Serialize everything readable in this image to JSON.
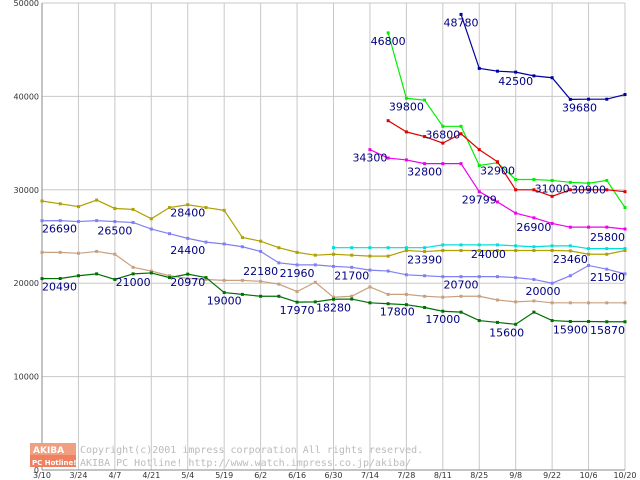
{
  "chart_data": {
    "type": "line",
    "title": "",
    "xlabel": "",
    "ylabel": "",
    "ylim": [
      0,
      50000
    ],
    "yticks": [
      0,
      10000,
      20000,
      30000,
      40000,
      50000
    ],
    "ytick_labels": [
      "0",
      "10000",
      "20000",
      "30000",
      "40000",
      "50000"
    ],
    "xlim": [
      0,
      32
    ],
    "xticks": [
      0,
      2,
      4,
      6,
      8,
      10,
      12,
      14,
      16,
      18,
      20,
      22,
      24,
      26,
      28,
      30,
      32
    ],
    "xtick_labels": [
      "3/10",
      "3/24",
      "4/7",
      "4/21",
      "5/4",
      "5/19",
      "6/2",
      "6/16",
      "6/30",
      "7/14",
      "7/28",
      "8/11",
      "8/25",
      "9/8",
      "9/22",
      "10/6",
      "10/20"
    ],
    "grid": true,
    "series": [
      {
        "name": "navy",
        "color": "#0000a0",
        "x": [
          23,
          24,
          25,
          26,
          27,
          28,
          29,
          30,
          31,
          32
        ],
        "values": [
          48780,
          43000,
          42700,
          42600,
          42200,
          42000,
          39680,
          39700,
          39700,
          40200
        ]
      },
      {
        "name": "bright-green",
        "color": "#00ee00",
        "x": [
          19,
          20,
          21,
          22,
          23,
          24,
          25,
          26,
          27,
          28,
          29,
          30,
          31,
          32
        ],
        "values": [
          46800,
          39800,
          39600,
          36800,
          36800,
          32600,
          32900,
          31100,
          31100,
          31000,
          30800,
          30700,
          31000,
          28100
        ]
      },
      {
        "name": "red",
        "color": "#e00000",
        "x": [
          19,
          20,
          21,
          22,
          23,
          24,
          25,
          26,
          27,
          28,
          29,
          30,
          31,
          32
        ],
        "values": [
          37400,
          36200,
          35700,
          35000,
          36000,
          34300,
          33000,
          30000,
          30000,
          29300,
          30000,
          30000,
          30000,
          29800
        ]
      },
      {
        "name": "magenta",
        "color": "#ee00ee",
        "x": [
          18,
          19,
          20,
          21,
          22,
          23,
          24,
          25,
          26,
          27,
          28,
          29,
          30,
          31,
          32
        ],
        "values": [
          34300,
          33400,
          33200,
          32800,
          32800,
          32800,
          29799,
          28700,
          27500,
          27000,
          26400,
          26000,
          26000,
          26000,
          25800
        ]
      },
      {
        "name": "cyan",
        "color": "#00dddd",
        "x": [
          16,
          17,
          18,
          19,
          20,
          21,
          22,
          23,
          24,
          25,
          26,
          27,
          28,
          29,
          30,
          31,
          32
        ],
        "values": [
          23800,
          23800,
          23800,
          23800,
          23800,
          23800,
          24100,
          24100,
          24100,
          24100,
          24000,
          23900,
          24000,
          24000,
          23700,
          23700,
          23700
        ]
      },
      {
        "name": "olive",
        "color": "#b0a000",
        "x": [
          0,
          1,
          2,
          3,
          4,
          5,
          6,
          7,
          8,
          9,
          10,
          11,
          12,
          13,
          14,
          15,
          16,
          17,
          18,
          19,
          20,
          21,
          22,
          23,
          24,
          25,
          26,
          27,
          28,
          29,
          30,
          31,
          32
        ],
        "values": [
          28800,
          28500,
          28200,
          28900,
          28000,
          27900,
          26900,
          28100,
          28400,
          28100,
          27800,
          24900,
          24500,
          23800,
          23300,
          23000,
          23100,
          23000,
          22900,
          22900,
          23500,
          23390,
          23500,
          23500,
          23500,
          23500,
          23500,
          23500,
          23500,
          23460,
          23100,
          23100,
          23500
        ]
      },
      {
        "name": "periwinkle",
        "color": "#8080f0",
        "x": [
          0,
          1,
          2,
          3,
          4,
          5,
          6,
          7,
          8,
          9,
          10,
          11,
          12,
          13,
          14,
          15,
          16,
          17,
          18,
          19,
          20,
          21,
          22,
          23,
          24,
          25,
          26,
          27,
          28,
          29,
          30,
          31,
          32
        ],
        "values": [
          26690,
          26700,
          26600,
          26700,
          26600,
          26500,
          25800,
          25300,
          24800,
          24400,
          24200,
          23900,
          23400,
          22180,
          21960,
          21960,
          21800,
          21700,
          21400,
          21300,
          20900,
          20800,
          20700,
          20700,
          20700,
          20700,
          20600,
          20400,
          20000,
          20800,
          21900,
          21500,
          21000
        ]
      },
      {
        "name": "tan",
        "color": "#c8a080",
        "x": [
          0,
          1,
          2,
          3,
          4,
          5,
          6,
          7,
          8,
          9,
          10,
          11,
          12,
          13,
          14,
          15,
          16,
          17,
          18,
          19,
          20,
          21,
          22,
          23,
          24,
          25,
          26,
          27,
          28,
          29,
          30,
          31,
          32
        ],
        "values": [
          23300,
          23300,
          23200,
          23400,
          23100,
          21700,
          21300,
          20800,
          20500,
          20400,
          20300,
          20300,
          20200,
          19900,
          19100,
          20100,
          18500,
          18600,
          19600,
          18800,
          18800,
          18600,
          18500,
          18600,
          18600,
          18200,
          18000,
          18100,
          17900,
          17900,
          17900,
          17900,
          17900
        ]
      },
      {
        "name": "dark-green",
        "color": "#007000",
        "x": [
          0,
          1,
          2,
          3,
          4,
          5,
          6,
          7,
          8,
          9,
          10,
          11,
          12,
          13,
          14,
          15,
          16,
          17,
          18,
          19,
          20,
          21,
          22,
          23,
          24,
          25,
          26,
          27,
          28,
          29,
          30,
          31,
          32
        ],
        "values": [
          20490,
          20500,
          20800,
          21000,
          20400,
          21000,
          21100,
          20600,
          20970,
          20600,
          19000,
          18800,
          18600,
          18600,
          17970,
          18000,
          18280,
          18300,
          17900,
          17800,
          17700,
          17400,
          17000,
          16900,
          16000,
          15800,
          15600,
          16900,
          16000,
          15900,
          15900,
          15870,
          15870
        ]
      }
    ],
    "annotations": [
      {
        "text": "48780",
        "x": 23,
        "y": 48780
      },
      {
        "text": "46800",
        "x": 19,
        "y": 46800
      },
      {
        "text": "42500",
        "x": 26,
        "y": 42500
      },
      {
        "text": "39800",
        "x": 20,
        "y": 39800
      },
      {
        "text": "39680",
        "x": 29.5,
        "y": 39680
      },
      {
        "text": "36800",
        "x": 22,
        "y": 36800
      },
      {
        "text": "34300",
        "x": 18,
        "y": 34300
      },
      {
        "text": "32800",
        "x": 21,
        "y": 32800
      },
      {
        "text": "32900",
        "x": 25,
        "y": 32900
      },
      {
        "text": "31000",
        "x": 28,
        "y": 31000
      },
      {
        "text": "30900",
        "x": 30,
        "y": 30900
      },
      {
        "text": "29799",
        "x": 24,
        "y": 29799
      },
      {
        "text": "28400",
        "x": 8,
        "y": 28400
      },
      {
        "text": "26900",
        "x": 27,
        "y": 26900
      },
      {
        "text": "26690",
        "x": 0,
        "y": 26690
      },
      {
        "text": "26500",
        "x": 4,
        "y": 26500
      },
      {
        "text": "25800",
        "x": 32,
        "y": 25800
      },
      {
        "text": "24400",
        "x": 8,
        "y": 24400
      },
      {
        "text": "24000",
        "x": 24.5,
        "y": 24000
      },
      {
        "text": "23390",
        "x": 21,
        "y": 23390
      },
      {
        "text": "23460",
        "x": 29,
        "y": 23460
      },
      {
        "text": "22180",
        "x": 12,
        "y": 22180
      },
      {
        "text": "21960",
        "x": 14,
        "y": 21960
      },
      {
        "text": "21700",
        "x": 17,
        "y": 21700
      },
      {
        "text": "21500",
        "x": 31,
        "y": 21500
      },
      {
        "text": "21000",
        "x": 5,
        "y": 21000
      },
      {
        "text": "20970",
        "x": 8,
        "y": 20970
      },
      {
        "text": "20700",
        "x": 23,
        "y": 20700
      },
      {
        "text": "20490",
        "x": 0,
        "y": 20490
      },
      {
        "text": "20000",
        "x": 27.5,
        "y": 20000
      },
      {
        "text": "19000",
        "x": 10,
        "y": 19000
      },
      {
        "text": "18280",
        "x": 16,
        "y": 18280
      },
      {
        "text": "17970",
        "x": 14,
        "y": 17970
      },
      {
        "text": "17800",
        "x": 19.5,
        "y": 17800
      },
      {
        "text": "17000",
        "x": 22,
        "y": 17000
      },
      {
        "text": "15600",
        "x": 25.5,
        "y": 15600
      },
      {
        "text": "15900",
        "x": 29,
        "y": 15900
      },
      {
        "text": "15870",
        "x": 32,
        "y": 15870
      }
    ]
  },
  "logo": {
    "line1": "AKIBA",
    "line2": "PC Hotline!"
  },
  "copyright": {
    "line1": "Copyright(c)2001 impress corporation All rights reserved.",
    "line2": "AKIBA PC Hotline!  http://www.watch.impress.co.jp/akiba/"
  }
}
